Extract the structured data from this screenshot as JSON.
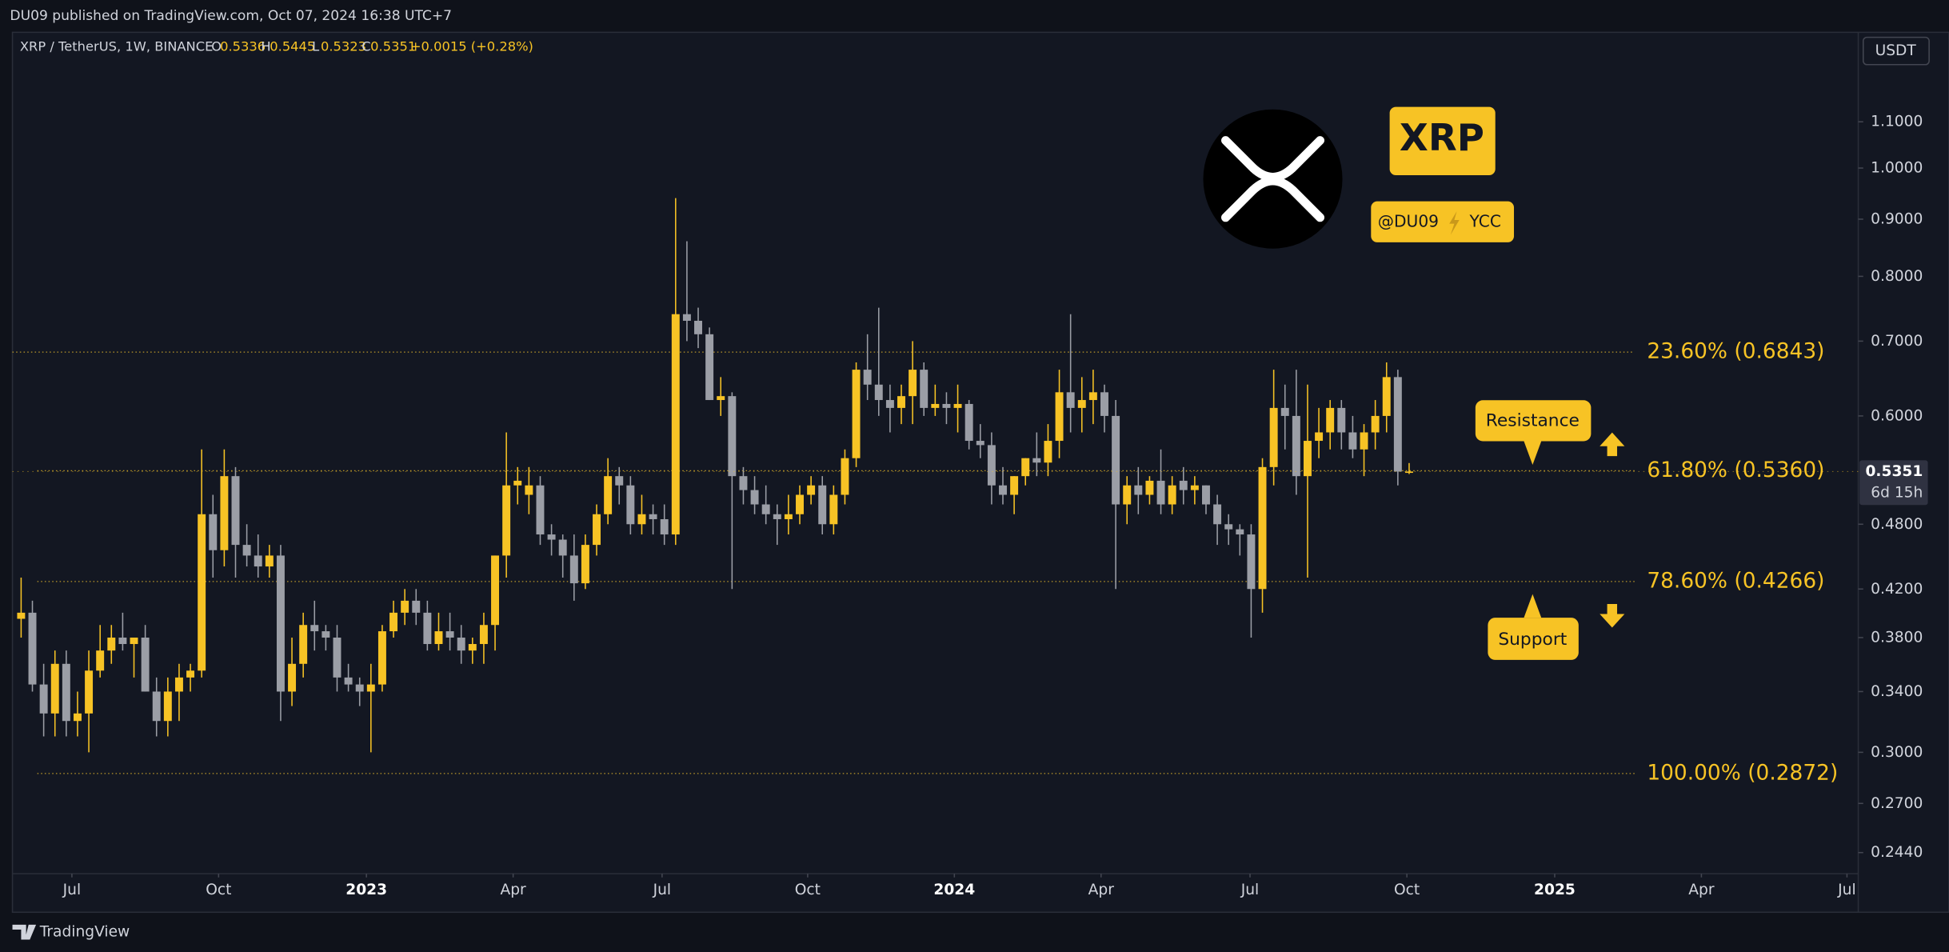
{
  "header": {
    "publisher": "DU09 published on TradingView.com, Oct 07, 2024 16:38 UTC+7"
  },
  "footer": {
    "brand": "TradingView"
  },
  "chart_data": {
    "type": "candlestick",
    "symbol": "XRP / TetherUS, 1W, BINANCE",
    "ohlc_legend": [
      {
        "label": "O",
        "value": 0.5336
      },
      {
        "label": "H",
        "value": 0.5445
      },
      {
        "label": "L",
        "value": 0.5323
      },
      {
        "label": "C",
        "value": 0.5351
      }
    ],
    "change": "+0.0015 (+0.28%)",
    "currency": "USDT",
    "last_price": 0.5351,
    "countdown": "6d 15h",
    "log_scale": true,
    "grid": false,
    "up_color": "#f7c325",
    "down_color": "#9b9ea6",
    "open": [
      0.395,
      0.4,
      0.345,
      0.325,
      0.36,
      0.32,
      0.325,
      0.355,
      0.37,
      0.38,
      0.375,
      0.38,
      0.34,
      0.32,
      0.34,
      0.35,
      0.355,
      0.49,
      0.455,
      0.53,
      0.46,
      0.45,
      0.44,
      0.45,
      0.34,
      0.36,
      0.39,
      0.385,
      0.38,
      0.35,
      0.345,
      0.34,
      0.345,
      0.385,
      0.4,
      0.41,
      0.4,
      0.375,
      0.385,
      0.38,
      0.37,
      0.375,
      0.39,
      0.45,
      0.52,
      0.51,
      0.52,
      0.47,
      0.465,
      0.45,
      0.425,
      0.46,
      0.49,
      0.53,
      0.52,
      0.48,
      0.49,
      0.485,
      0.47,
      0.74,
      0.73,
      0.71,
      0.62,
      0.625,
      0.53,
      0.515,
      0.5,
      0.49,
      0.485,
      0.49,
      0.51,
      0.52,
      0.48,
      0.51,
      0.55,
      0.66,
      0.64,
      0.62,
      0.61,
      0.625,
      0.66,
      0.61,
      0.615,
      0.61,
      0.615,
      0.57,
      0.565,
      0.52,
      0.51,
      0.53,
      0.55,
      0.545,
      0.57,
      0.63,
      0.61,
      0.62,
      0.63,
      0.6,
      0.5,
      0.52,
      0.51,
      0.525,
      0.5,
      0.525,
      0.515,
      0.52,
      0.5,
      0.48,
      0.475,
      0.47,
      0.42,
      0.54,
      0.61,
      0.6,
      0.53,
      0.57,
      0.58,
      0.61,
      0.58,
      0.56,
      0.58,
      0.6,
      0.65,
      0.5336
    ],
    "high": [
      0.43,
      0.41,
      0.36,
      0.37,
      0.37,
      0.34,
      0.37,
      0.39,
      0.39,
      0.4,
      0.38,
      0.39,
      0.35,
      0.35,
      0.36,
      0.36,
      0.56,
      0.51,
      0.56,
      0.54,
      0.48,
      0.47,
      0.46,
      0.46,
      0.38,
      0.4,
      0.41,
      0.39,
      0.39,
      0.36,
      0.35,
      0.36,
      0.39,
      0.41,
      0.42,
      0.42,
      0.41,
      0.4,
      0.4,
      0.39,
      0.38,
      0.4,
      0.45,
      0.58,
      0.54,
      0.54,
      0.53,
      0.48,
      0.47,
      0.47,
      0.47,
      0.5,
      0.55,
      0.54,
      0.53,
      0.51,
      0.5,
      0.5,
      0.94,
      0.86,
      0.75,
      0.72,
      0.65,
      0.63,
      0.54,
      0.53,
      0.52,
      0.5,
      0.51,
      0.52,
      0.53,
      0.53,
      0.52,
      0.56,
      0.67,
      0.71,
      0.75,
      0.64,
      0.64,
      0.7,
      0.67,
      0.64,
      0.63,
      0.64,
      0.62,
      0.59,
      0.58,
      0.54,
      0.53,
      0.55,
      0.58,
      0.59,
      0.66,
      0.74,
      0.65,
      0.66,
      0.64,
      0.62,
      0.53,
      0.54,
      0.53,
      0.56,
      0.53,
      0.54,
      0.53,
      0.52,
      0.51,
      0.49,
      0.48,
      0.48,
      0.55,
      0.66,
      0.64,
      0.66,
      0.64,
      0.61,
      0.62,
      0.62,
      0.6,
      0.59,
      0.62,
      0.67,
      0.66,
      0.5445
    ],
    "low": [
      0.38,
      0.34,
      0.31,
      0.31,
      0.31,
      0.31,
      0.3,
      0.35,
      0.36,
      0.37,
      0.35,
      0.34,
      0.31,
      0.31,
      0.32,
      0.34,
      0.35,
      0.43,
      0.44,
      0.43,
      0.44,
      0.43,
      0.43,
      0.32,
      0.33,
      0.35,
      0.37,
      0.37,
      0.34,
      0.34,
      0.33,
      0.3,
      0.34,
      0.38,
      0.39,
      0.39,
      0.37,
      0.37,
      0.37,
      0.36,
      0.36,
      0.36,
      0.37,
      0.43,
      0.5,
      0.49,
      0.46,
      0.45,
      0.43,
      0.41,
      0.42,
      0.45,
      0.48,
      0.5,
      0.47,
      0.47,
      0.47,
      0.46,
      0.46,
      0.7,
      0.69,
      0.62,
      0.6,
      0.42,
      0.5,
      0.49,
      0.48,
      0.46,
      0.47,
      0.48,
      0.5,
      0.47,
      0.47,
      0.5,
      0.54,
      0.62,
      0.6,
      0.58,
      0.59,
      0.59,
      0.6,
      0.6,
      0.59,
      0.58,
      0.56,
      0.55,
      0.5,
      0.5,
      0.49,
      0.52,
      0.53,
      0.53,
      0.55,
      0.58,
      0.58,
      0.59,
      0.58,
      0.42,
      0.48,
      0.49,
      0.5,
      0.49,
      0.49,
      0.5,
      0.5,
      0.49,
      0.46,
      0.46,
      0.45,
      0.38,
      0.4,
      0.52,
      0.56,
      0.51,
      0.43,
      0.55,
      0.56,
      0.56,
      0.55,
      0.53,
      0.56,
      0.58,
      0.52,
      0.5323
    ],
    "close": [
      0.4,
      0.345,
      0.325,
      0.36,
      0.32,
      0.325,
      0.355,
      0.37,
      0.38,
      0.375,
      0.38,
      0.34,
      0.32,
      0.34,
      0.35,
      0.355,
      0.49,
      0.455,
      0.53,
      0.46,
      0.45,
      0.44,
      0.45,
      0.34,
      0.36,
      0.39,
      0.385,
      0.38,
      0.35,
      0.345,
      0.34,
      0.345,
      0.385,
      0.4,
      0.41,
      0.4,
      0.375,
      0.385,
      0.38,
      0.37,
      0.375,
      0.39,
      0.45,
      0.52,
      0.525,
      0.52,
      0.47,
      0.465,
      0.45,
      0.425,
      0.46,
      0.49,
      0.53,
      0.52,
      0.48,
      0.49,
      0.485,
      0.47,
      0.74,
      0.73,
      0.71,
      0.62,
      0.625,
      0.53,
      0.515,
      0.5,
      0.49,
      0.485,
      0.49,
      0.51,
      0.52,
      0.48,
      0.51,
      0.55,
      0.66,
      0.64,
      0.62,
      0.61,
      0.625,
      0.66,
      0.61,
      0.615,
      0.61,
      0.615,
      0.57,
      0.565,
      0.52,
      0.51,
      0.53,
      0.55,
      0.545,
      0.57,
      0.63,
      0.61,
      0.62,
      0.63,
      0.6,
      0.5,
      0.52,
      0.51,
      0.525,
      0.5,
      0.52,
      0.515,
      0.52,
      0.5,
      0.48,
      0.475,
      0.47,
      0.42,
      0.54,
      0.61,
      0.6,
      0.53,
      0.57,
      0.58,
      0.61,
      0.58,
      0.56,
      0.58,
      0.6,
      0.65,
      0.535,
      0.5351
    ],
    "xlim": [
      -0.77,
      162.8
    ],
    "xticks": [
      {
        "value": 4.5,
        "label": "Jul"
      },
      {
        "value": 17.5,
        "label": "Oct"
      },
      {
        "value": 30.6,
        "label": "2023"
      },
      {
        "value": 43.6,
        "label": "Apr"
      },
      {
        "value": 56.8,
        "label": "Jul"
      },
      {
        "value": 69.7,
        "label": "Oct"
      },
      {
        "value": 82.7,
        "label": "2024"
      },
      {
        "value": 95.7,
        "label": "Apr"
      },
      {
        "value": 108.9,
        "label": "Jul"
      },
      {
        "value": 122.8,
        "label": "Oct"
      },
      {
        "value": 135.9,
        "label": "2025"
      },
      {
        "value": 148.9,
        "label": "Apr"
      },
      {
        "value": 161.8,
        "label": "Jul"
      }
    ],
    "ylim": [
      0.2336,
      1.316
    ],
    "yticks": [
      {
        "value": 1.1,
        "label": "1.1000"
      },
      {
        "value": 1.0,
        "label": "1.0000"
      },
      {
        "value": 0.9,
        "label": "0.9000"
      },
      {
        "value": 0.8,
        "label": "0.8000"
      },
      {
        "value": 0.7,
        "label": "0.7000"
      },
      {
        "value": 0.6,
        "label": "0.6000"
      },
      {
        "value": 0.48,
        "label": "0.4800"
      },
      {
        "value": 0.42,
        "label": "0.4200"
      },
      {
        "value": 0.38,
        "label": "0.3800"
      },
      {
        "value": 0.34,
        "label": "0.3400"
      },
      {
        "value": 0.3,
        "label": "0.3000"
      },
      {
        "value": 0.27,
        "label": "0.2700"
      },
      {
        "value": 0.244,
        "label": "0.2440"
      }
    ],
    "fib_levels": [
      {
        "label": "23.60% (0.6843)",
        "value": 0.6843
      },
      {
        "label": "61.80% (0.5360)",
        "value": 0.536
      },
      {
        "label": "78.60% (0.4266)",
        "value": 0.4266
      },
      {
        "label": "100.00% (0.2872)",
        "value": 0.2872
      }
    ],
    "annotations": {
      "resistance": "Resistance",
      "support": "Support",
      "logo_text": "XRP",
      "author": "@DU09",
      "group": "YCC"
    }
  }
}
